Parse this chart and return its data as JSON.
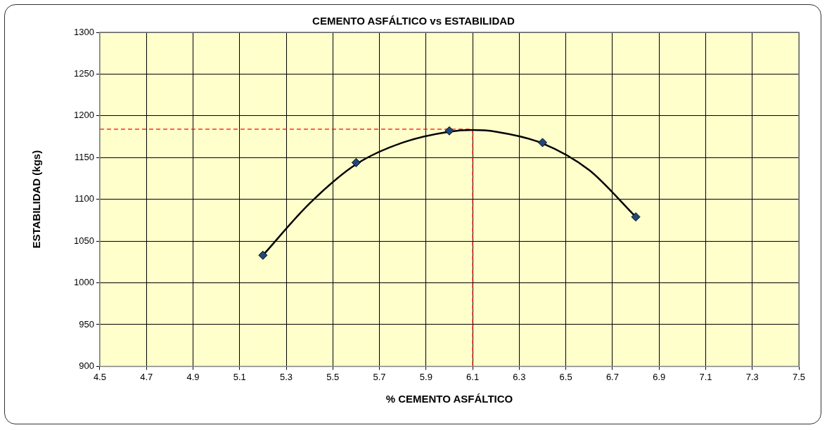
{
  "chart_data": {
    "type": "scatter",
    "title": "CEMENTO ASFÁLTICO vs ESTABILIDAD",
    "xlabel": "% CEMENTO ASFÁLTICO",
    "ylabel": "ESTABILIDAD (kgs)",
    "x": [
      5.2,
      5.6,
      6.0,
      6.4,
      6.8
    ],
    "series": [
      {
        "color": "#1f497d",
        "marker": "diamond",
        "values": [
          1033,
          1144,
          1182,
          1168,
          1079
        ]
      },
      {
        "type": "line",
        "color": "#000000",
        "marker": "none",
        "line_style": "solid",
        "x": [
          5.2,
          5.4,
          5.6,
          5.8,
          6.0,
          6.1,
          6.2,
          6.4,
          6.6,
          6.8
        ],
        "values": [
          1033,
          1095,
          1142,
          1168,
          1181,
          1183,
          1181,
          1167,
          1135,
          1079
        ]
      },
      {
        "type": "line",
        "color": "#ff0000",
        "marker": "none",
        "line_style": "dashed",
        "x": [
          4.5,
          6.1,
          6.1
        ],
        "values": [
          1184,
          1184,
          900
        ]
      }
    ],
    "xlim": [
      4.5,
      7.5
    ],
    "xticks": [
      4.5,
      4.7,
      4.9,
      5.1,
      5.3,
      5.5,
      5.7,
      5.9,
      6.1,
      6.3,
      6.5,
      6.7,
      6.9,
      7.1,
      7.3,
      7.5
    ],
    "ylim": [
      900,
      1300
    ],
    "yticks": [
      900,
      950,
      1000,
      1050,
      1100,
      1150,
      1200,
      1250,
      1300
    ],
    "grid": true,
    "legend": false
  }
}
